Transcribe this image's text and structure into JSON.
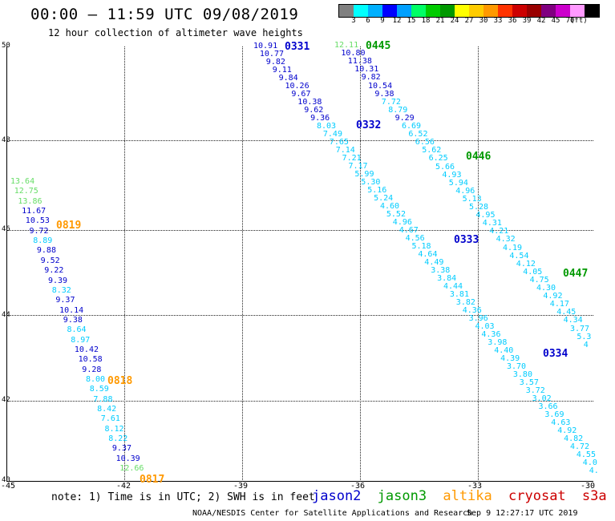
{
  "header": {
    "title": "00:00 — 11:59 UTC 09/08/2019",
    "subtitle": "12 hour collection of altimeter wave heights"
  },
  "scale": {
    "colors": [
      "#808080",
      "#00ffff",
      "#00b0ff",
      "#0000ff",
      "#00a0ff",
      "#00ff66",
      "#00cc00",
      "#009900",
      "#ffff00",
      "#ffcc00",
      "#ff9900",
      "#ff3300",
      "#cc0000",
      "#990000",
      "#800080",
      "#cc00cc",
      "#ff99ff",
      "#000000"
    ],
    "labels": [
      "3",
      "6",
      "9",
      "12",
      "15",
      "18",
      "21",
      "24",
      "27",
      "30",
      "33",
      "36",
      "39",
      "42",
      "45",
      "70"
    ],
    "unit": "(ft)"
  },
  "axes": {
    "lat_labels": [
      "50",
      "48",
      "46",
      "44",
      "42",
      "40"
    ],
    "lon_labels": [
      "-45",
      "-42",
      "-39",
      "-36",
      "-33",
      "-30"
    ]
  },
  "satellite_colors": {
    "jason2": "#0000cc",
    "jason3": "#009900",
    "altika": "#ff9900",
    "cryosat": "#cc0000",
    "s3a": "#cc0000",
    "low_wave": "#00ccff",
    "light_green": "#66dd66"
  },
  "passes": [
    {
      "id": "0331",
      "sat": "jason2"
    },
    {
      "id": "0332",
      "sat": "jason2"
    },
    {
      "id": "0333",
      "sat": "jason2"
    },
    {
      "id": "0334",
      "sat": "jason2"
    },
    {
      "id": "0445",
      "sat": "jason3"
    },
    {
      "id": "0446",
      "sat": "jason3"
    },
    {
      "id": "0447",
      "sat": "jason3"
    },
    {
      "id": "0817",
      "sat": "altika"
    },
    {
      "id": "0818",
      "sat": "altika"
    },
    {
      "id": "0819",
      "sat": "altika"
    }
  ],
  "track_a": [
    "10.91",
    "10.77",
    "9.82",
    "9.11",
    "9.84",
    "10.26",
    "9.67",
    "10.38",
    "9.62",
    "9.36",
    "8.03",
    "7.49",
    "7.65",
    "7.14",
    "7.21",
    "7.17",
    "5.99",
    "5.30",
    "5.16",
    "5.24",
    "4.60",
    "5.52",
    "4.96",
    "4.67",
    "4.56",
    "5.18",
    "4.64",
    "4.49",
    "3.38",
    "3.84",
    "4.44",
    "3.81",
    "3.82",
    "4.36",
    "3.96",
    "4.03",
    "4.36",
    "3.98",
    "4.40",
    "4.39",
    "3.70",
    "3.80",
    "3.57",
    "3.72",
    "3.02",
    "3.66",
    "3.69",
    "4.63",
    "4.92",
    "4.82",
    "4.72",
    "4.55",
    "4.0",
    "4."
  ],
  "track_b": [
    "12.11",
    "10.80",
    "11.38",
    "10.31",
    "9.82",
    "10.54",
    "9.38",
    "7.72",
    "8.79",
    "9.29",
    "6.69",
    "6.52",
    "6.56",
    "5.62",
    "6.25",
    "5.66",
    "4.93",
    "5.94",
    "4.96",
    "5.13",
    "5.28",
    "4.95",
    "4.31",
    "4.21",
    "4.32",
    "4.19",
    "4.54",
    "4.12",
    "4.05",
    "4.75",
    "4.30",
    "4.92",
    "4.17",
    "4.45",
    "4.34",
    "3.77",
    "5.3",
    "4"
  ],
  "track_c": [
    "13.64",
    "12.75",
    "13.86",
    "11.67",
    "10.53",
    "9.72",
    "8.89",
    "9.88",
    "9.52",
    "9.22",
    "9.39",
    "8.32",
    "9.37",
    "10.14",
    "9.38",
    "8.64",
    "8.97",
    "10.42",
    "10.58",
    "9.28",
    "8.00",
    "8.59",
    "7.88",
    "8.42",
    "7.61",
    "8.12",
    "8.22",
    "9.37",
    "10.39",
    "12.66"
  ],
  "footer": {
    "note": "note: 1) Time is in UTC; 2) SWH is in feet",
    "legend": [
      "jason2",
      "jason3",
      "altika",
      "cryosat",
      "s3a"
    ],
    "credit": "NOAA/NESDIS Center for Satellite Applications and Research",
    "generated": "Sep  9 12:27:17 UTC 2019"
  }
}
